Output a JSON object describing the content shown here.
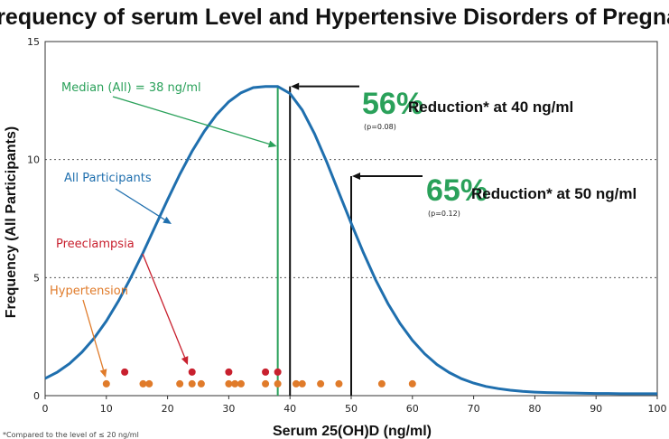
{
  "chart_data": {
    "type": "line",
    "title": "Frequency of serum Level and Hypertensive Disorders of Pregnancy",
    "xlabel": "Serum 25(OH)D (ng/ml)",
    "ylabel": "Frequency (All Participants)",
    "xlim": [
      0,
      100
    ],
    "ylim": [
      0,
      15
    ],
    "x_ticks": [
      0,
      10,
      20,
      30,
      40,
      50,
      60,
      70,
      80,
      90,
      100
    ],
    "y_ticks": [
      0,
      5,
      10,
      15
    ],
    "grid": "horizontal dotted",
    "colors": {
      "curve": "#1f6fae",
      "median": "#2aa15a",
      "preeclampsia": "#c8202e",
      "hypertension": "#e07b2a",
      "reduction": "#2aa15a"
    },
    "series": [
      {
        "name": "All Participants",
        "x": [
          0,
          2,
          4,
          6,
          8,
          10,
          12,
          14,
          16,
          18,
          20,
          22,
          24,
          26,
          28,
          30,
          32,
          34,
          36,
          38,
          40,
          42,
          44,
          46,
          48,
          50,
          52,
          54,
          56,
          58,
          60,
          62,
          64,
          66,
          68,
          70,
          72,
          74,
          76,
          78,
          80,
          82,
          84,
          86,
          88,
          90,
          92,
          94,
          96,
          98,
          100
        ],
        "y": [
          0.73,
          1.0,
          1.36,
          1.84,
          2.43,
          3.16,
          4.02,
          5.0,
          6.06,
          7.18,
          8.3,
          9.38,
          10.35,
          11.2,
          11.9,
          12.45,
          12.83,
          13.05,
          13.1,
          13.1,
          12.8,
          12.1,
          11.1,
          9.9,
          8.6,
          7.3,
          6.05,
          4.9,
          3.9,
          3.05,
          2.34,
          1.77,
          1.32,
          0.98,
          0.72,
          0.53,
          0.39,
          0.3,
          0.23,
          0.18,
          0.15,
          0.13,
          0.12,
          0.11,
          0.1,
          0.09,
          0.09,
          0.08,
          0.08,
          0.08,
          0.08
        ]
      },
      {
        "name": "Preeclampsia",
        "points": [
          [
            13,
            1.0
          ],
          [
            24,
            1.0
          ],
          [
            30,
            1.0
          ],
          [
            36,
            1.0
          ],
          [
            38,
            1.0
          ]
        ]
      },
      {
        "name": "Hypertension",
        "points": [
          [
            10,
            0.5
          ],
          [
            16,
            0.5
          ],
          [
            17,
            0.5
          ],
          [
            22,
            0.5
          ],
          [
            24,
            0.5
          ],
          [
            25.5,
            0.5
          ],
          [
            30,
            0.5
          ],
          [
            31,
            0.5
          ],
          [
            32,
            0.5
          ],
          [
            36,
            0.5
          ],
          [
            38,
            0.5
          ],
          [
            41,
            0.5
          ],
          [
            42,
            0.5
          ],
          [
            45,
            0.5
          ],
          [
            48,
            0.5
          ],
          [
            55,
            0.5
          ],
          [
            60,
            0.5
          ]
        ]
      }
    ],
    "annotations": {
      "median_x": 38,
      "median_label": "Median (All) = 38 ng/ml",
      "all_label": "All Participants",
      "preeclampsia_label": "Preeclampsia",
      "hypertension_label": "Hypertension",
      "r40": {
        "x": 40,
        "y": 13.1,
        "pct": "56%",
        "text": "Reduction* at 40 ng/ml",
        "p": "(p=0.08)"
      },
      "r50": {
        "x": 50,
        "y": 9.3,
        "pct": "65%",
        "text": "Reduction* at 50 ng/ml",
        "p": "(p=0.12)"
      }
    },
    "footnote": "*Compared to the level of ≤ 20 ng/ml"
  }
}
